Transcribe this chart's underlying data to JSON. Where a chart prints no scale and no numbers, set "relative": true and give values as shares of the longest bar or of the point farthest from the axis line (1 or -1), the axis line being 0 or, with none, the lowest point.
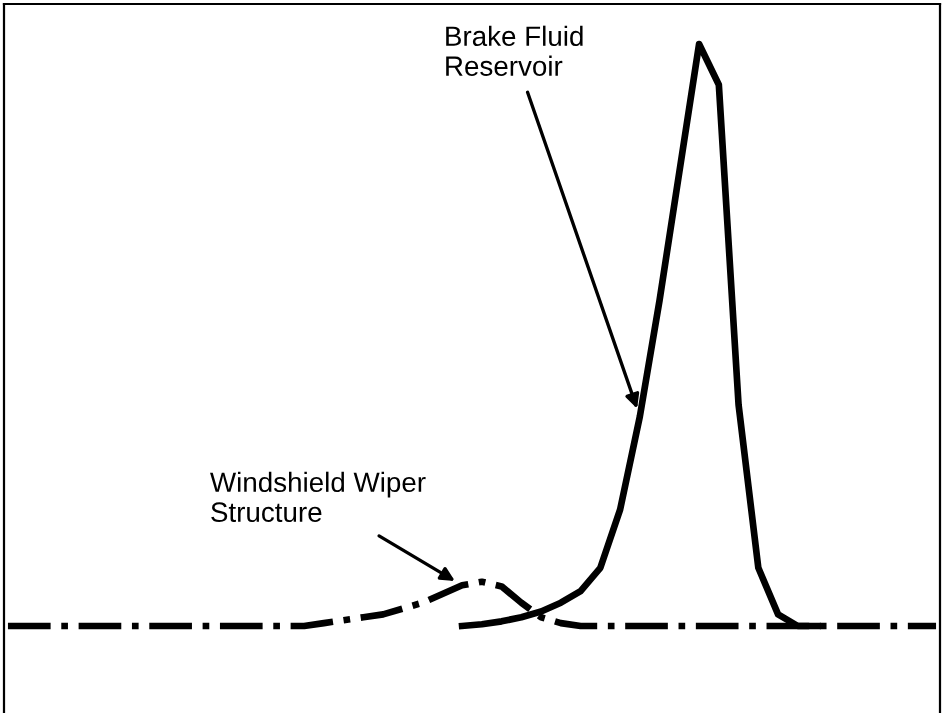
{
  "chart_data": {
    "type": "line",
    "relative": true,
    "grid": false,
    "categories": [
      null,
      null,
      null,
      null,
      null,
      null,
      null,
      null,
      null,
      null,
      null,
      null,
      null,
      null,
      null,
      null,
      null,
      null,
      null,
      null,
      null,
      null,
      null,
      null,
      null,
      null,
      null,
      null,
      null,
      null,
      null,
      null,
      null,
      null,
      null,
      null,
      null,
      null,
      null,
      null,
      null,
      null,
      null,
      null,
      null,
      null,
      null,
      null
    ],
    "series": [
      {
        "color": "#000000",
        "line_style": "solid",
        "values": [
          null,
          null,
          null,
          null,
          null,
          null,
          null,
          null,
          null,
          null,
          null,
          null,
          null,
          null,
          null,
          null,
          null,
          null,
          null,
          null,
          null,
          null,
          null,
          0,
          0.003,
          0.008,
          0.015,
          0.025,
          0.04,
          0.06,
          0.1,
          0.2,
          0.36,
          0.56,
          0.78,
          1.0,
          0.93,
          0.38,
          0.1,
          0.02,
          0,
          0,
          null,
          null,
          null,
          null,
          null,
          null
        ]
      },
      {
        "color": "#000000",
        "line_style": "dashdot",
        "values": [
          0,
          0,
          0,
          0,
          0,
          0,
          0,
          0,
          0,
          0,
          0,
          0,
          0,
          0,
          0,
          0,
          0.005,
          0.01,
          0.015,
          0.02,
          0.03,
          0.04,
          0.055,
          0.07,
          0.076,
          0.068,
          0.04,
          0.015,
          0.005,
          0,
          0,
          0,
          0,
          0,
          0,
          0,
          0,
          0,
          0,
          0,
          0,
          0,
          0,
          0,
          0,
          0,
          0,
          0
        ]
      }
    ],
    "annotations": [
      "Brake Fluid\nReservoir",
      "Windshield Wiper\nStructure"
    ]
  }
}
